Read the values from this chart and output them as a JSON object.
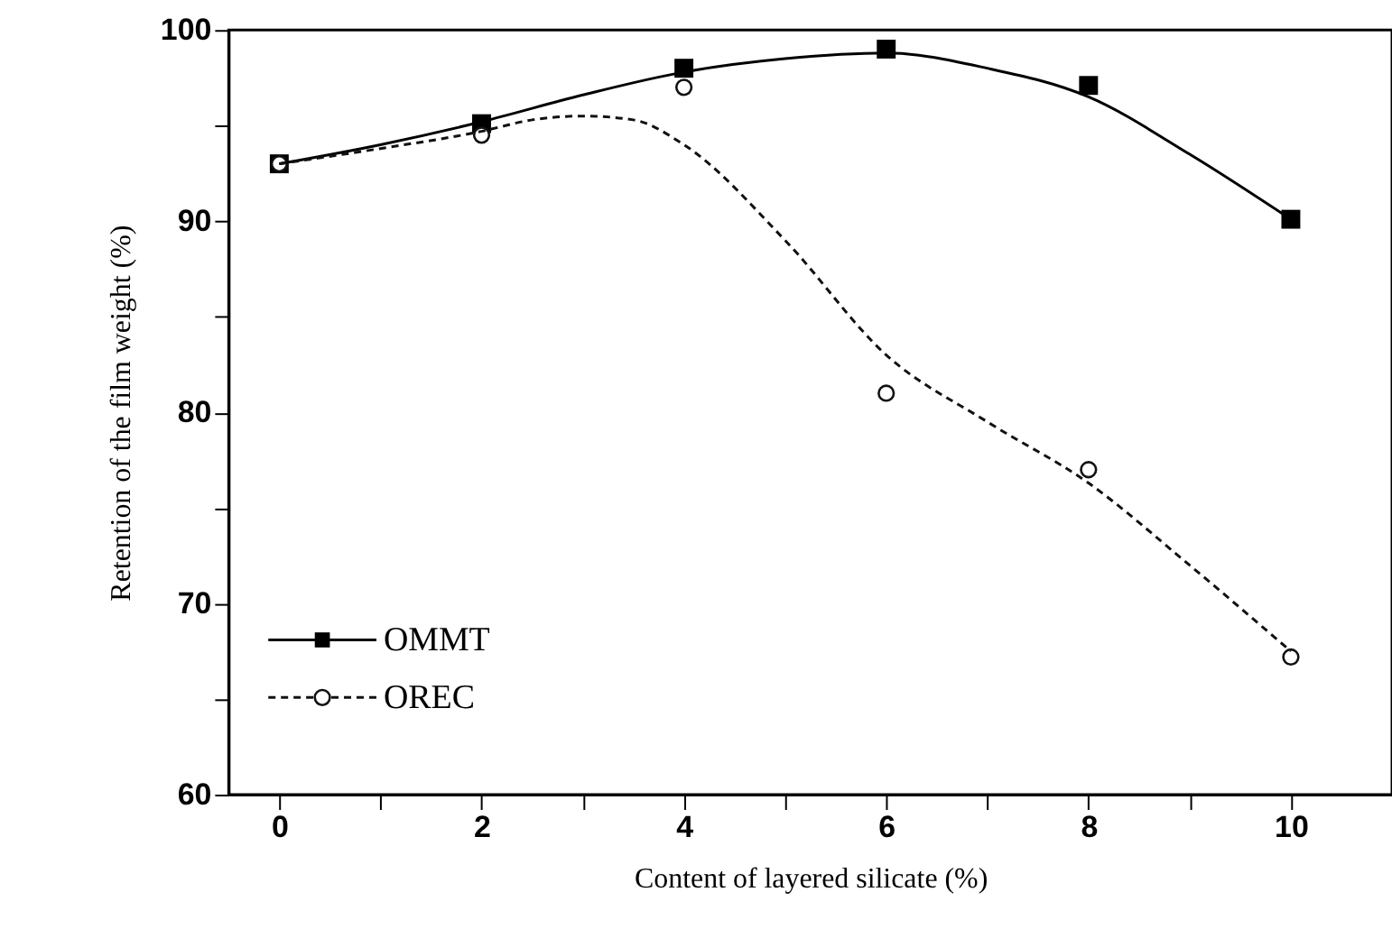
{
  "chart_data": {
    "type": "scatter",
    "xlabel": "Content of layered silicate (%)",
    "ylabel": "Retention of the film weight (%)",
    "x": [
      0,
      2,
      4,
      6,
      8,
      10
    ],
    "xlim": [
      -0.5,
      11
    ],
    "xticks": [
      0,
      {
        "value": 1,
        "label": null
      },
      2,
      {
        "value": 3,
        "label": null
      },
      4,
      {
        "value": 5,
        "label": null
      },
      6,
      {
        "value": 7,
        "label": null
      },
      8,
      {
        "value": 9,
        "label": null
      },
      10
    ],
    "ylim": [
      60,
      100
    ],
    "yticks": [
      60,
      {
        "value": 65,
        "label": null
      },
      70,
      {
        "value": 75,
        "label": null
      },
      80,
      {
        "value": 85,
        "label": null
      },
      90,
      {
        "value": 95,
        "label": null
      },
      100
    ],
    "grid": false,
    "legend": "bottom left",
    "series": [
      {
        "name": "OMMT",
        "marker": "square",
        "line_style": "solid",
        "color": "#000000",
        "values": [
          93,
          95.1,
          98,
          99,
          97.1,
          90.1
        ]
      },
      {
        "name": "OREC",
        "marker": "circle",
        "line_style": "dashed",
        "color": "#111111",
        "values": [
          93,
          94.5,
          97,
          81,
          77,
          67.2
        ]
      },
      {
        "type": "line",
        "line_style": "solid",
        "color": "#000000",
        "x": [
          0,
          1,
          2,
          3,
          4,
          5,
          6,
          7,
          8,
          9,
          10
        ],
        "values": [
          93,
          94,
          95.2,
          96.6,
          97.8,
          98.5,
          98.8,
          98,
          96.5,
          93.5,
          90.1
        ]
      },
      {
        "type": "line",
        "line_style": "dashed",
        "color": "#111111",
        "x": [
          0,
          1,
          2,
          2.5,
          3,
          3.5,
          4,
          5,
          6,
          7,
          8,
          9,
          10
        ],
        "values": [
          93,
          93.8,
          94.7,
          95.3,
          95.5,
          95.3,
          94,
          89,
          83,
          79.5,
          76.3,
          72,
          67.5
        ]
      }
    ]
  }
}
